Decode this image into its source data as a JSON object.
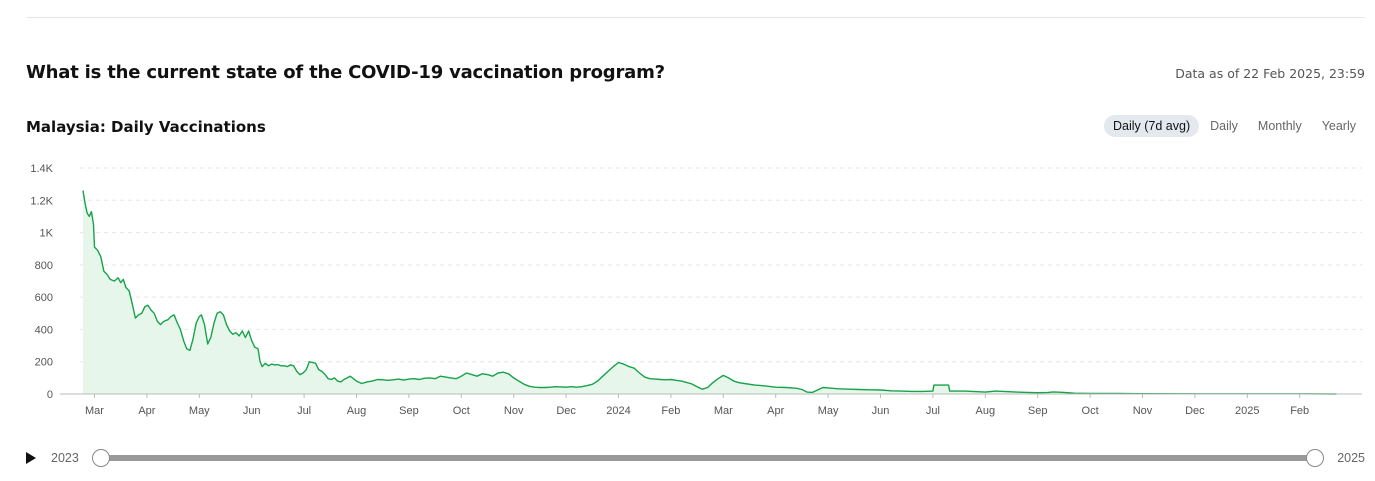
{
  "header": {
    "question": "What is the current state of the COVID-19 vaccination program?",
    "data_as_of": "Data as of 22 Feb 2025, 23:59"
  },
  "chart_header": {
    "title": "Malaysia: Daily Vaccinations",
    "tabs": [
      {
        "label": "Daily (7d avg)",
        "active": true
      },
      {
        "label": "Daily",
        "active": false
      },
      {
        "label": "Monthly",
        "active": false
      },
      {
        "label": "Yearly",
        "active": false
      }
    ]
  },
  "timeline": {
    "start_label": "2023",
    "end_label": "2025",
    "range_start": 0,
    "range_end": 1
  },
  "colors": {
    "line": "#16a34a",
    "fill": "#e6f6ea",
    "grid": "#e6e6e6",
    "axis": "#bbbbbb"
  },
  "chart_data": {
    "type": "area",
    "title": "Malaysia: Daily Vaccinations",
    "xlabel": "",
    "ylabel": "",
    "ylim": [
      0,
      1400
    ],
    "x_range_months": [
      0,
      24
    ],
    "yticks": [
      {
        "value": 0,
        "label": "0"
      },
      {
        "value": 200,
        "label": "200"
      },
      {
        "value": 400,
        "label": "400"
      },
      {
        "value": 600,
        "label": "600"
      },
      {
        "value": 800,
        "label": "800"
      },
      {
        "value": 1000,
        "label": "1K"
      },
      {
        "value": 1200,
        "label": "1.2K"
      },
      {
        "value": 1400,
        "label": "1.4K"
      }
    ],
    "xticks": [
      {
        "t": 0,
        "label": "Mar"
      },
      {
        "t": 1,
        "label": "Apr"
      },
      {
        "t": 2,
        "label": "May"
      },
      {
        "t": 3,
        "label": "Jun"
      },
      {
        "t": 4,
        "label": "Jul"
      },
      {
        "t": 5,
        "label": "Aug"
      },
      {
        "t": 6,
        "label": "Sep"
      },
      {
        "t": 7,
        "label": "Oct"
      },
      {
        "t": 8,
        "label": "Nov"
      },
      {
        "t": 9,
        "label": "Dec"
      },
      {
        "t": 10,
        "label": "2024"
      },
      {
        "t": 11,
        "label": "Feb"
      },
      {
        "t": 12,
        "label": "Mar"
      },
      {
        "t": 13,
        "label": "Apr"
      },
      {
        "t": 14,
        "label": "May"
      },
      {
        "t": 15,
        "label": "Jun"
      },
      {
        "t": 16,
        "label": "Jul"
      },
      {
        "t": 17,
        "label": "Aug"
      },
      {
        "t": 18,
        "label": "Sep"
      },
      {
        "t": 19,
        "label": "Oct"
      },
      {
        "t": 20,
        "label": "Nov"
      },
      {
        "t": 21,
        "label": "Dec"
      },
      {
        "t": 22,
        "label": "2025"
      },
      {
        "t": 23,
        "label": "Feb"
      }
    ],
    "series": [
      {
        "name": "Daily (7d avg)",
        "points": [
          [
            -0.22,
            1260
          ],
          [
            -0.18,
            1180
          ],
          [
            -0.14,
            1120
          ],
          [
            -0.1,
            1100
          ],
          [
            -0.06,
            1130
          ],
          [
            -0.02,
            1050
          ],
          [
            0.0,
            910
          ],
          [
            0.06,
            890
          ],
          [
            0.12,
            850
          ],
          [
            0.18,
            760
          ],
          [
            0.24,
            740
          ],
          [
            0.3,
            710
          ],
          [
            0.38,
            700
          ],
          [
            0.45,
            720
          ],
          [
            0.5,
            690
          ],
          [
            0.55,
            710
          ],
          [
            0.6,
            660
          ],
          [
            0.66,
            640
          ],
          [
            0.72,
            560
          ],
          [
            0.78,
            470
          ],
          [
            0.84,
            490
          ],
          [
            0.9,
            500
          ],
          [
            0.96,
            540
          ],
          [
            1.02,
            550
          ],
          [
            1.08,
            520
          ],
          [
            1.14,
            500
          ],
          [
            1.2,
            450
          ],
          [
            1.26,
            430
          ],
          [
            1.32,
            450
          ],
          [
            1.4,
            460
          ],
          [
            1.46,
            480
          ],
          [
            1.52,
            490
          ],
          [
            1.58,
            440
          ],
          [
            1.64,
            400
          ],
          [
            1.7,
            330
          ],
          [
            1.76,
            280
          ],
          [
            1.82,
            270
          ],
          [
            1.88,
            340
          ],
          [
            1.94,
            440
          ],
          [
            2.0,
            480
          ],
          [
            2.04,
            490
          ],
          [
            2.1,
            430
          ],
          [
            2.16,
            310
          ],
          [
            2.22,
            350
          ],
          [
            2.28,
            440
          ],
          [
            2.34,
            500
          ],
          [
            2.4,
            510
          ],
          [
            2.46,
            490
          ],
          [
            2.52,
            430
          ],
          [
            2.58,
            390
          ],
          [
            2.64,
            370
          ],
          [
            2.7,
            380
          ],
          [
            2.76,
            360
          ],
          [
            2.82,
            390
          ],
          [
            2.88,
            350
          ],
          [
            2.94,
            390
          ],
          [
            3.0,
            330
          ],
          [
            3.06,
            290
          ],
          [
            3.12,
            280
          ],
          [
            3.16,
            200
          ],
          [
            3.2,
            170
          ],
          [
            3.26,
            190
          ],
          [
            3.32,
            175
          ],
          [
            3.38,
            185
          ],
          [
            3.44,
            180
          ],
          [
            3.5,
            182
          ],
          [
            3.56,
            175
          ],
          [
            3.62,
            175
          ],
          [
            3.68,
            170
          ],
          [
            3.74,
            180
          ],
          [
            3.8,
            175
          ],
          [
            3.86,
            140
          ],
          [
            3.92,
            120
          ],
          [
            3.98,
            130
          ],
          [
            4.04,
            150
          ],
          [
            4.1,
            200
          ],
          [
            4.16,
            195
          ],
          [
            4.22,
            190
          ],
          [
            4.28,
            150
          ],
          [
            4.34,
            140
          ],
          [
            4.4,
            120
          ],
          [
            4.46,
            95
          ],
          [
            4.52,
            90
          ],
          [
            4.58,
            100
          ],
          [
            4.64,
            80
          ],
          [
            4.7,
            75
          ],
          [
            4.76,
            90
          ],
          [
            4.82,
            100
          ],
          [
            4.88,
            110
          ],
          [
            4.94,
            95
          ],
          [
            5.0,
            80
          ],
          [
            5.1,
            65
          ],
          [
            5.2,
            75
          ],
          [
            5.3,
            80
          ],
          [
            5.4,
            90
          ],
          [
            5.5,
            88
          ],
          [
            5.6,
            85
          ],
          [
            5.7,
            88
          ],
          [
            5.8,
            92
          ],
          [
            5.9,
            86
          ],
          [
            6.0,
            92
          ],
          [
            6.1,
            95
          ],
          [
            6.2,
            90
          ],
          [
            6.3,
            98
          ],
          [
            6.4,
            100
          ],
          [
            6.5,
            95
          ],
          [
            6.6,
            110
          ],
          [
            6.7,
            105
          ],
          [
            6.8,
            100
          ],
          [
            6.9,
            95
          ],
          [
            7.0,
            110
          ],
          [
            7.1,
            130
          ],
          [
            7.2,
            120
          ],
          [
            7.3,
            110
          ],
          [
            7.4,
            125
          ],
          [
            7.5,
            120
          ],
          [
            7.6,
            110
          ],
          [
            7.7,
            130
          ],
          [
            7.8,
            135
          ],
          [
            7.9,
            125
          ],
          [
            8.0,
            100
          ],
          [
            8.1,
            80
          ],
          [
            8.2,
            60
          ],
          [
            8.3,
            48
          ],
          [
            8.4,
            42
          ],
          [
            8.5,
            40
          ],
          [
            8.6,
            40
          ],
          [
            8.7,
            42
          ],
          [
            8.8,
            45
          ],
          [
            8.9,
            44
          ],
          [
            9.0,
            42
          ],
          [
            9.1,
            45
          ],
          [
            9.2,
            42
          ],
          [
            9.3,
            45
          ],
          [
            9.4,
            52
          ],
          [
            9.5,
            60
          ],
          [
            9.6,
            80
          ],
          [
            9.7,
            110
          ],
          [
            9.8,
            140
          ],
          [
            9.9,
            170
          ],
          [
            10.0,
            195
          ],
          [
            10.1,
            185
          ],
          [
            10.2,
            170
          ],
          [
            10.3,
            160
          ],
          [
            10.4,
            130
          ],
          [
            10.5,
            105
          ],
          [
            10.6,
            95
          ],
          [
            10.7,
            92
          ],
          [
            10.8,
            90
          ],
          [
            10.9,
            88
          ],
          [
            11.0,
            90
          ],
          [
            11.1,
            85
          ],
          [
            11.2,
            80
          ],
          [
            11.3,
            72
          ],
          [
            11.4,
            62
          ],
          [
            11.5,
            45
          ],
          [
            11.6,
            30
          ],
          [
            11.7,
            40
          ],
          [
            11.8,
            70
          ],
          [
            11.9,
            95
          ],
          [
            12.0,
            115
          ],
          [
            12.1,
            100
          ],
          [
            12.2,
            80
          ],
          [
            12.3,
            70
          ],
          [
            12.4,
            65
          ],
          [
            12.6,
            55
          ],
          [
            12.8,
            50
          ],
          [
            13.0,
            42
          ],
          [
            13.2,
            40
          ],
          [
            13.4,
            35
          ],
          [
            13.5,
            28
          ],
          [
            13.6,
            12
          ],
          [
            13.7,
            10
          ],
          [
            13.8,
            25
          ],
          [
            13.9,
            40
          ],
          [
            14.0,
            38
          ],
          [
            14.2,
            32
          ],
          [
            14.4,
            30
          ],
          [
            14.6,
            28
          ],
          [
            14.8,
            26
          ],
          [
            15.0,
            25
          ],
          [
            15.2,
            20
          ],
          [
            15.4,
            18
          ],
          [
            15.6,
            16
          ],
          [
            15.8,
            16
          ],
          [
            16.0,
            18
          ],
          [
            16.02,
            55
          ],
          [
            16.3,
            55
          ],
          [
            16.32,
            18
          ],
          [
            16.6,
            18
          ],
          [
            16.8,
            15
          ],
          [
            17.0,
            12
          ],
          [
            17.2,
            18
          ],
          [
            17.4,
            15
          ],
          [
            17.6,
            12
          ],
          [
            17.8,
            10
          ],
          [
            18.0,
            8
          ],
          [
            18.2,
            10
          ],
          [
            18.3,
            13
          ],
          [
            18.5,
            10
          ],
          [
            18.7,
            5
          ],
          [
            19.0,
            3
          ],
          [
            19.5,
            3
          ],
          [
            20.0,
            2
          ],
          [
            21.0,
            1
          ],
          [
            22.0,
            1
          ],
          [
            23.0,
            1
          ],
          [
            23.7,
            0
          ]
        ]
      }
    ]
  }
}
